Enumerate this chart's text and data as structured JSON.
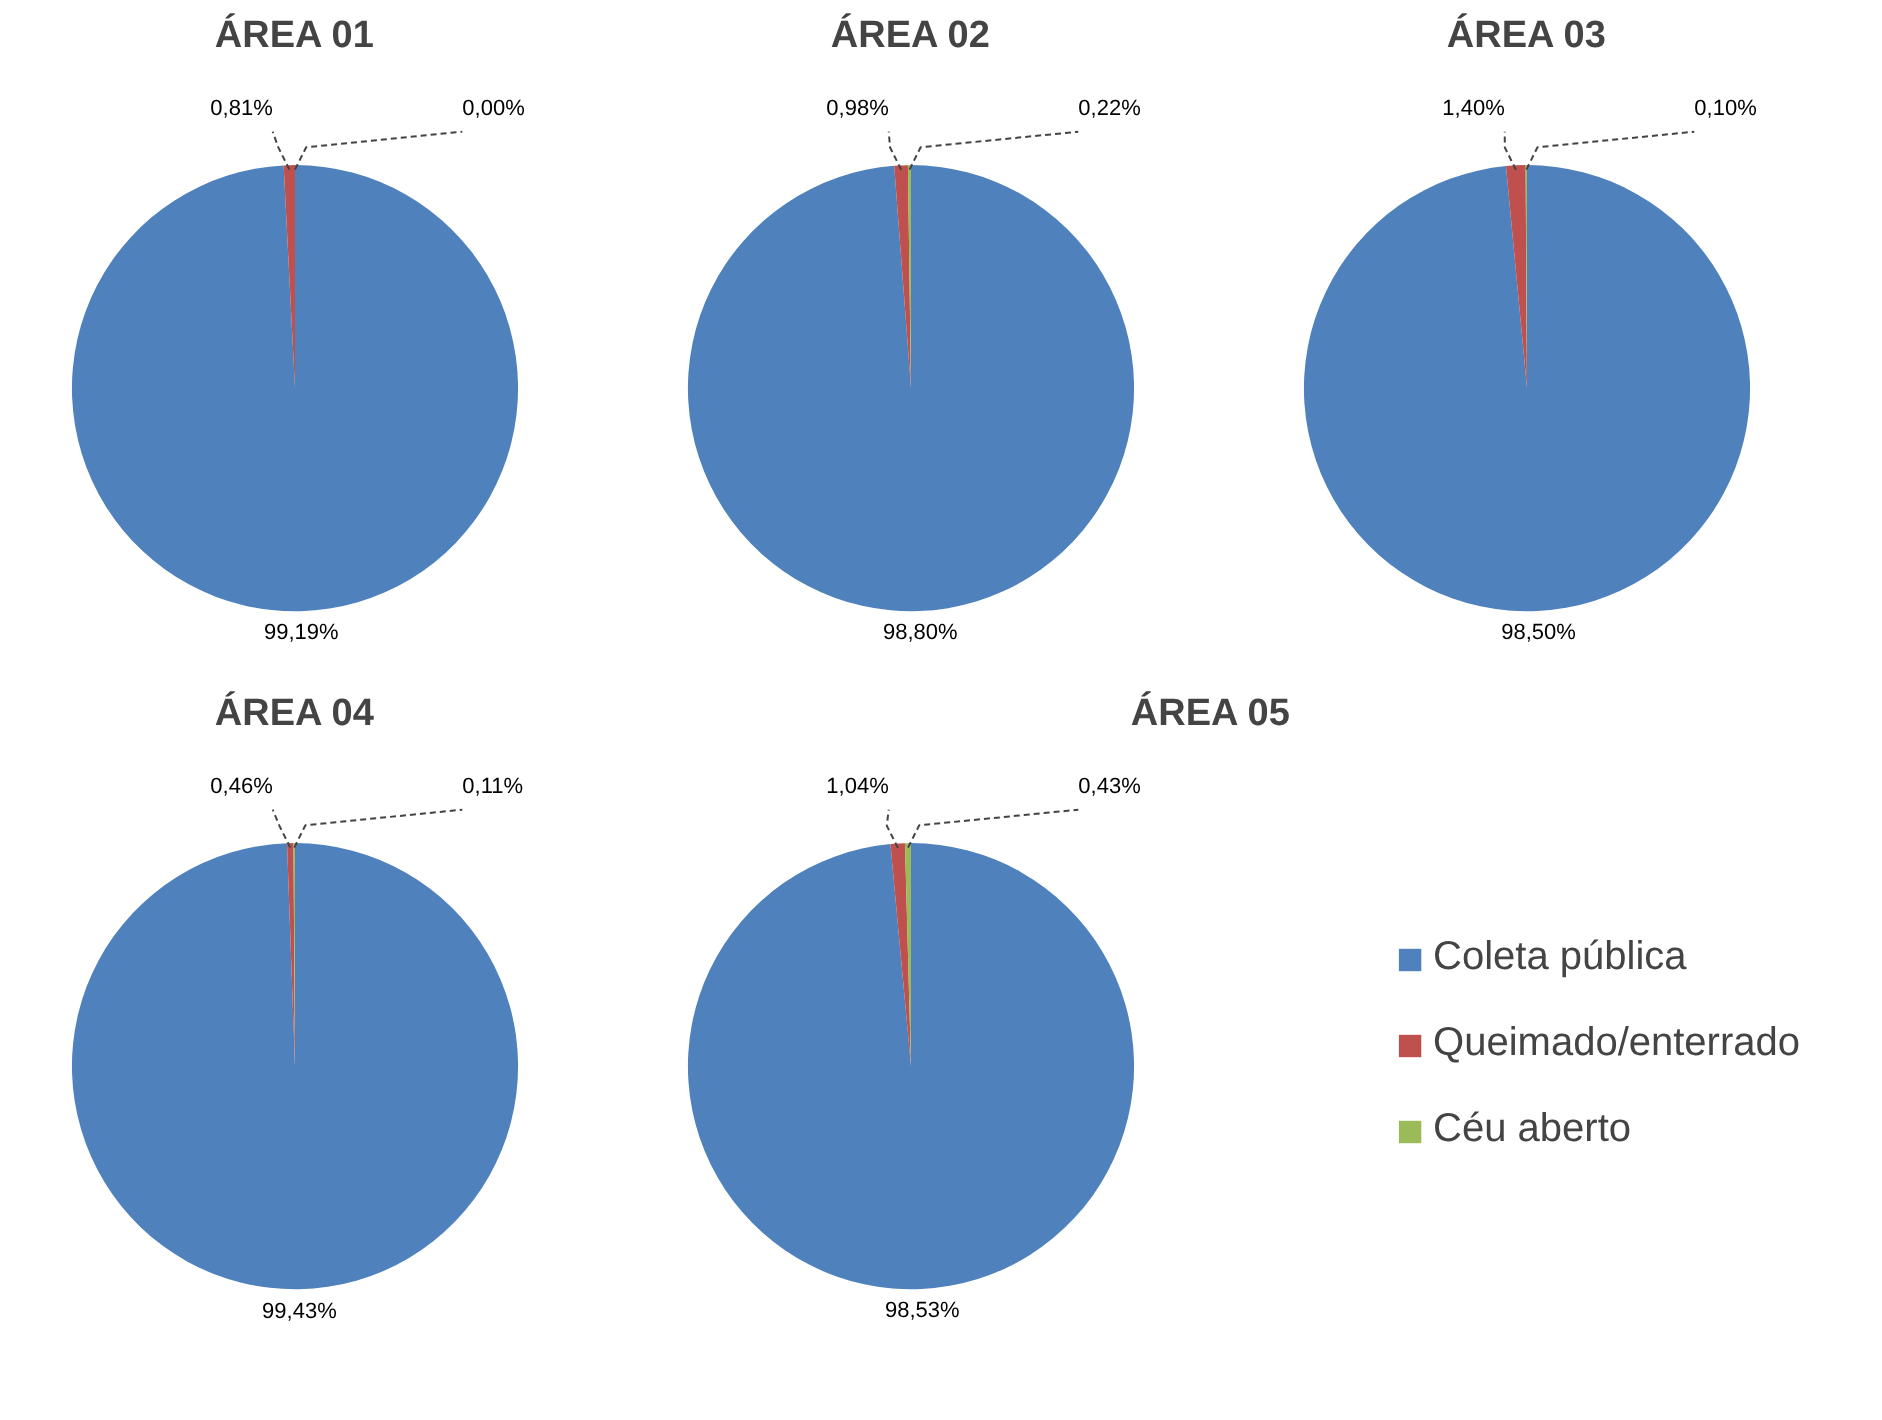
{
  "chart_data": [
    {
      "type": "pie",
      "title": "ÁREA 01",
      "categories": [
        null,
        null,
        null
      ],
      "values": [
        99.19,
        0.81,
        0.0
      ],
      "colors": [
        "#4f81bd",
        "#c0504d",
        "#9bbb59"
      ],
      "value_labels": [
        "99,19%",
        "0,81%",
        "0,00%"
      ],
      "legend": false
    },
    {
      "type": "pie",
      "title": "ÁREA 02",
      "categories": [
        null,
        null,
        null
      ],
      "values": [
        98.8,
        0.98,
        0.22
      ],
      "colors": [
        "#4f81bd",
        "#c0504d",
        "#9bbb59"
      ],
      "value_labels": [
        "98,80%",
        "0,98%",
        "0,22%"
      ],
      "legend": false
    },
    {
      "type": "pie",
      "title": "ÁREA 03",
      "categories": [
        null,
        null,
        null
      ],
      "values": [
        98.5,
        1.4,
        0.1
      ],
      "colors": [
        "#4f81bd",
        "#c0504d",
        "#9bbb59"
      ],
      "value_labels": [
        "98,50%",
        "1,40%",
        "0,10%"
      ],
      "legend": false
    },
    {
      "type": "pie",
      "title": "ÁREA 04",
      "categories": [
        null,
        null,
        null
      ],
      "values": [
        99.43,
        0.46,
        0.11
      ],
      "colors": [
        "#4f81bd",
        "#c0504d",
        "#9bbb59"
      ],
      "value_labels": [
        "99,43%",
        "0,46%",
        "0,11%"
      ],
      "legend": false
    },
    {
      "type": "pie",
      "title": "ÁREA 05",
      "categories": [
        "Coleta pública",
        "Queimado/enterrado",
        "Céu aberto"
      ],
      "values": [
        98.53,
        1.04,
        0.43
      ],
      "colors": [
        "#4f81bd",
        "#c0504d",
        "#9bbb59"
      ],
      "value_labels": [
        "98,53%",
        "1,04%",
        "0,43%"
      ],
      "legend": "right"
    }
  ]
}
